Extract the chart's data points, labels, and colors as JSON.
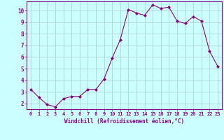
{
  "x": [
    0,
    1,
    2,
    3,
    4,
    5,
    6,
    7,
    8,
    9,
    10,
    11,
    12,
    13,
    14,
    15,
    16,
    17,
    18,
    19,
    20,
    21,
    22,
    23
  ],
  "y": [
    3.2,
    2.5,
    1.9,
    1.7,
    2.4,
    2.6,
    2.6,
    3.2,
    3.2,
    4.1,
    5.9,
    7.5,
    10.1,
    9.8,
    9.6,
    10.5,
    10.2,
    10.3,
    9.1,
    8.9,
    9.5,
    9.1,
    6.5,
    5.2
  ],
  "line_color": "#880088",
  "marker": "D",
  "marker_size": 2,
  "bg_color": "#ccffff",
  "grid_color": "#aacccc",
  "axis_color": "#880088",
  "xlabel": "Windchill (Refroidissement éolien,°C)",
  "xlim": [
    -0.5,
    23.5
  ],
  "ylim": [
    1.5,
    10.8
  ],
  "yticks": [
    2,
    3,
    4,
    5,
    6,
    7,
    8,
    9,
    10
  ],
  "xticks": [
    0,
    1,
    2,
    3,
    4,
    5,
    6,
    7,
    8,
    9,
    10,
    11,
    12,
    13,
    14,
    15,
    16,
    17,
    18,
    19,
    20,
    21,
    22,
    23
  ]
}
